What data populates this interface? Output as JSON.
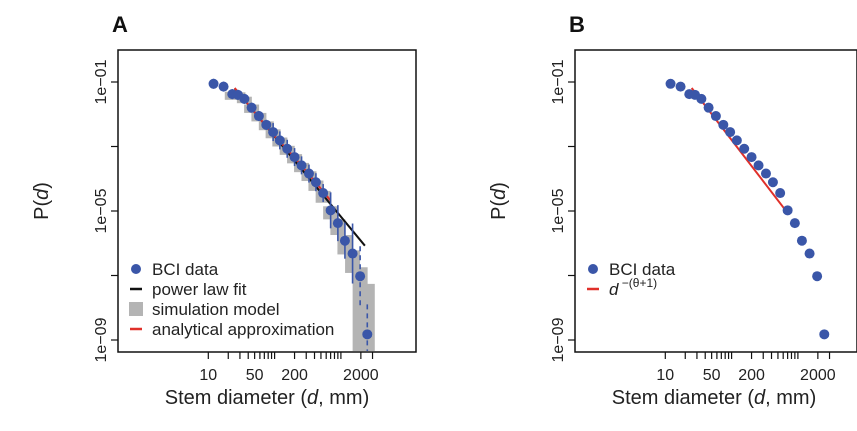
{
  "chart_data": [
    {
      "panel": "A",
      "type": "scatter",
      "xlabel": "Stem diameter (d, mm)",
      "ylabel": "P(d)",
      "xscale": "log",
      "yscale": "log",
      "xticks": [
        "10",
        "50",
        "200",
        "2000"
      ],
      "yticks": [
        "1e−01",
        "1e−05",
        "1e−09"
      ],
      "legend": {
        "placement": "bottom-left",
        "entries": [
          {
            "label": "BCI data",
            "symbol": "point",
            "color": "#3a56a8"
          },
          {
            "label": "power law fit",
            "symbol": "line",
            "color": "#111111"
          },
          {
            "label": "simulation model",
            "symbol": "box",
            "color": "#b4b4b4"
          },
          {
            "label": "analytical approximation",
            "symbol": "line",
            "color": "#e0302a"
          }
        ]
      },
      "bci_data": {
        "x": [
          12,
          17,
          23,
          28,
          35,
          45,
          58,
          75,
          95,
          120,
          155,
          200,
          255,
          330,
          420,
          540,
          700,
          900,
          1150,
          1500,
          1950,
          2500
        ],
        "y": [
          0.088,
          0.072,
          0.042,
          0.04,
          0.03,
          0.016,
          0.0088,
          0.0047,
          0.0028,
          0.00155,
          0.00085,
          0.00047,
          0.00026,
          0.000145,
          7.8e-05,
          3.6e-05,
          1.05e-05,
          4.2e-06,
          1.2e-06,
          4.8e-07,
          9.5e-08,
          1.5e-09
        ]
      },
      "power_law_fit": {
        "x": [
          25,
          2300
        ],
        "y": [
          0.064,
          8.4e-07
        ]
      },
      "analytical_approximation": {
        "x": [
          25,
          50,
          100,
          200,
          400,
          700
        ],
        "y": [
          0.065,
          0.0115,
          0.0021,
          0.00046,
          8.5e-05,
          2.1e-05
        ]
      },
      "simulation_model": {
        "x": [
          23,
          28,
          35,
          45,
          58,
          75,
          95,
          120,
          155,
          200,
          255,
          330,
          420,
          540,
          700,
          900,
          1150,
          1500,
          1950,
          2500
        ],
        "low": [
          0.028,
          0.03,
          0.022,
          0.011,
          0.006,
          0.0032,
          0.0018,
          0.001,
          0.00055,
          0.0003,
          0.00016,
          8.5e-05,
          4.2e-05,
          1.8e-05,
          5.5e-06,
          1.8e-06,
          4.5e-07,
          1.2e-07,
          4.5e-10,
          4.5e-10
        ],
        "high": [
          0.05,
          0.048,
          0.035,
          0.02,
          0.011,
          0.006,
          0.0034,
          0.0019,
          0.00105,
          0.00058,
          0.00031,
          0.00017,
          8.8e-05,
          4.2e-05,
          1.4e-05,
          5.5e-06,
          1.8e-06,
          6e-07,
          1.8e-07,
          5.5e-08
        ]
      }
    },
    {
      "panel": "B",
      "type": "scatter",
      "xlabel": "Stem diameter (d, mm)",
      "ylabel": "P(d)",
      "xscale": "log",
      "yscale": "log",
      "xticks": [
        "10",
        "50",
        "200",
        "2000"
      ],
      "yticks": [
        "1e−01",
        "1e−05",
        "1e−09"
      ],
      "legend": {
        "placement": "bottom-left",
        "entries": [
          {
            "label": "BCI data",
            "symbol": "point",
            "color": "#3a56a8"
          },
          {
            "label": "d",
            "exponent": "−(θ+1)",
            "symbol": "line",
            "color": "#e0302a"
          }
        ]
      },
      "bci_data": {
        "x": [
          12,
          17,
          23,
          28,
          35,
          45,
          58,
          75,
          95,
          120,
          155,
          200,
          255,
          330,
          420,
          540,
          700,
          900,
          1150,
          1500,
          1950,
          2500
        ],
        "y": [
          0.088,
          0.072,
          0.042,
          0.04,
          0.03,
          0.016,
          0.0088,
          0.0047,
          0.0028,
          0.00155,
          0.00085,
          0.00047,
          0.00026,
          0.000145,
          7.8e-05,
          3.6e-05,
          1.05e-05,
          4.2e-06,
          1.2e-06,
          4.8e-07,
          9.5e-08,
          1.5e-09
        ]
      },
      "fit_line": {
        "x": [
          25,
          620
        ],
        "y": [
          0.065,
          1.2e-05
        ]
      }
    }
  ]
}
